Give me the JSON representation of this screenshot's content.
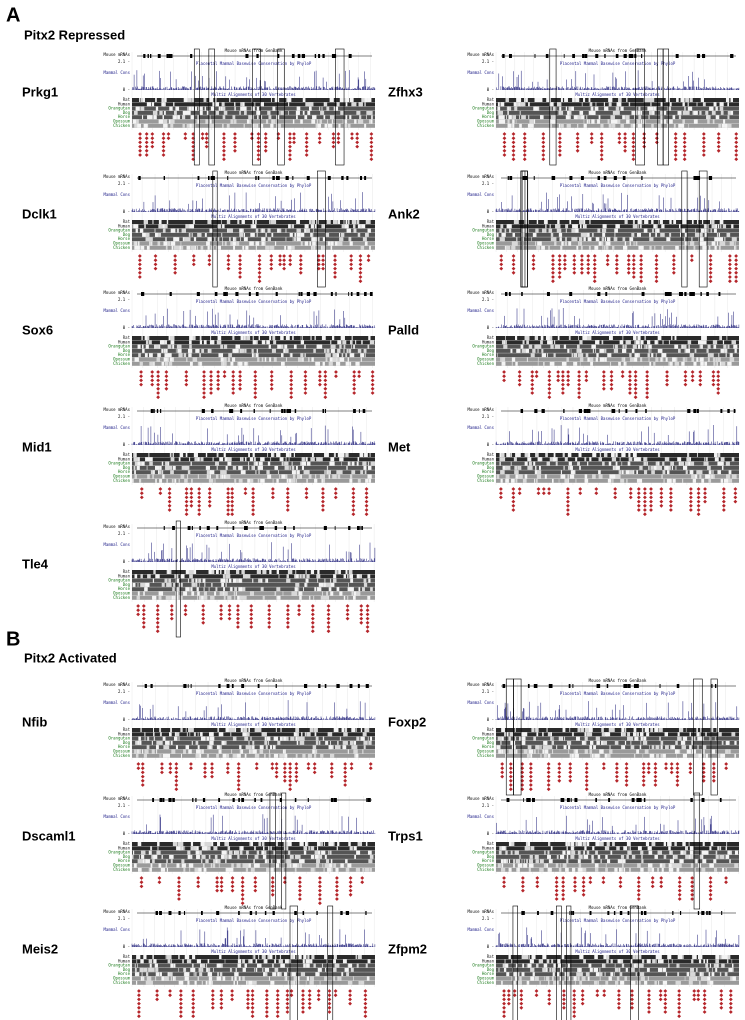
{
  "panel_a": {
    "letter": "A",
    "title": "Pitx2 Repressed",
    "genes": [
      "Prkg1",
      "Zfhx3",
      "Dclk1",
      "Ank2",
      "Sox6",
      "Palld",
      "Mid1",
      "Met",
      "Tle4"
    ]
  },
  "panel_b": {
    "letter": "B",
    "title": "Pitx2 Activated",
    "genes": [
      "Nfib",
      "Foxp2",
      "Dscaml1",
      "Trps1",
      "Meis2",
      "Zfpm2"
    ]
  },
  "track_labels": {
    "mrna_left": "Mouse mRNAs",
    "mrna": "Mouse mRNAs from GenBank",
    "conservation": "Placental Mammal Basewise Conservation by PhyloP",
    "cons_short": "Mammal Cons",
    "ymax": "2.1 -",
    "ymin": "0 -",
    "alignment": "Multiz Alignments of 30 Vertebrates",
    "species": [
      "Rat",
      "Human",
      "Orangutan",
      "Dog",
      "Horse",
      "Opossum",
      "Chicken"
    ]
  }
}
